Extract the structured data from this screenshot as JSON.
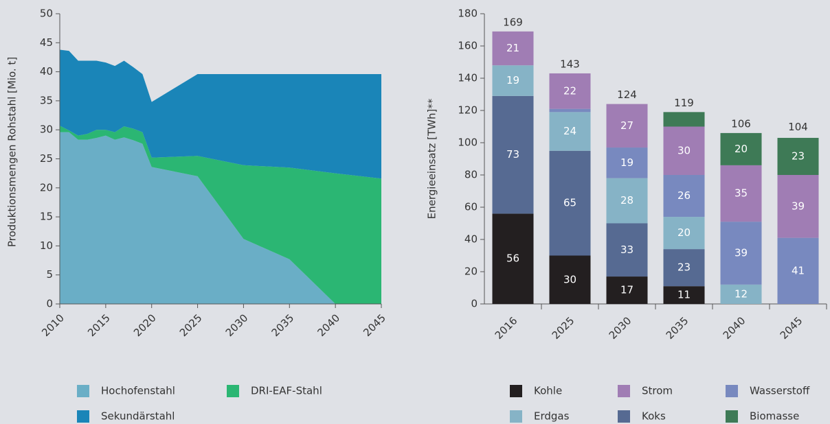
{
  "chart_data": [
    {
      "type": "area",
      "ylabel": "Produktionsmengen Rohstahl [Mio. t]",
      "x": [
        2010,
        2011,
        2012,
        2013,
        2014,
        2015,
        2016,
        2017,
        2018,
        2019,
        2020,
        2025,
        2030,
        2035,
        2040,
        2045
      ],
      "series": [
        {
          "name": "Hochofenstahl",
          "color": "#6aaec6",
          "values": [
            29.6,
            29.6,
            28.3,
            28.3,
            28.6,
            29.0,
            28.3,
            28.7,
            28.2,
            27.6,
            23.6,
            22.0,
            11.2,
            7.7,
            0,
            0
          ]
        },
        {
          "name": "DRI-EAF-Stahl",
          "color": "#2bb673",
          "values": [
            1.1,
            0.3,
            0.7,
            1.0,
            1.4,
            1.0,
            1.3,
            1.9,
            2.0,
            2.0,
            1.6,
            3.5,
            12.7,
            15.8,
            22.5,
            21.6
          ]
        },
        {
          "name": "Sekundärstahl",
          "color": "#1a85b8",
          "values": [
            13.1,
            13.7,
            12.9,
            12.6,
            11.9,
            11.6,
            11.4,
            11.3,
            10.6,
            10.0,
            9.6,
            14.1,
            15.7,
            16.1,
            17.1,
            18.0
          ]
        }
      ],
      "xlim": [
        2010,
        2045
      ],
      "xticks": [
        2010,
        2015,
        2020,
        2025,
        2030,
        2035,
        2040,
        2045
      ],
      "ylim": [
        0,
        50
      ],
      "yticks": [
        0,
        5,
        10,
        15,
        20,
        25,
        30,
        35,
        40,
        45,
        50
      ]
    },
    {
      "type": "bar",
      "stacked": true,
      "ylabel": "Energieeinsatz [TWh]**",
      "categories": [
        "2016",
        "2025",
        "2030",
        "2035",
        "2040",
        "2045"
      ],
      "series": [
        {
          "name": "Kohle",
          "color": "#231f20",
          "values": [
            56,
            30,
            17,
            11,
            0,
            0
          ]
        },
        {
          "name": "Koks",
          "color": "#566a92",
          "values": [
            73,
            65,
            33,
            23,
            0,
            0
          ]
        },
        {
          "name": "Erdgas",
          "color": "#86b3c6",
          "values": [
            19,
            24,
            28,
            20,
            12,
            0
          ]
        },
        {
          "name": "Wasserstoff",
          "color": "#7889bf",
          "values": [
            0,
            2,
            19,
            26,
            39,
            41
          ]
        },
        {
          "name": "Strom",
          "color": "#a07db4",
          "values": [
            21,
            22,
            27,
            30,
            35,
            39
          ]
        },
        {
          "name": "Biomasse",
          "color": "#3e7a56",
          "values": [
            0,
            0,
            0,
            9,
            20,
            23
          ]
        }
      ],
      "totals": [
        169,
        143,
        124,
        119,
        106,
        104
      ],
      "ylim": [
        0,
        180
      ],
      "yticks": [
        0,
        20,
        40,
        60,
        80,
        100,
        120,
        140,
        160,
        180
      ]
    }
  ]
}
